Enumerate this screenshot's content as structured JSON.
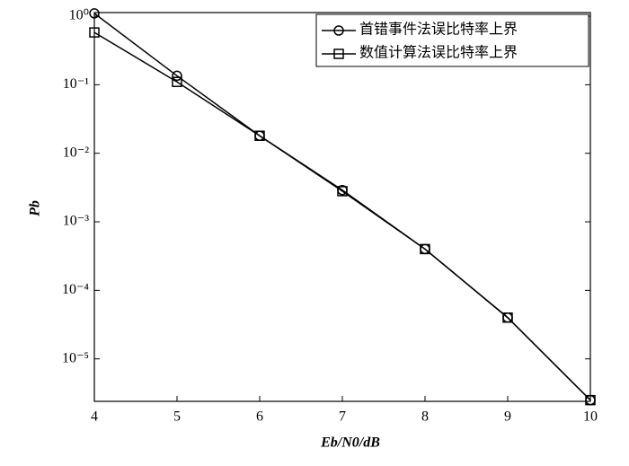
{
  "chart_data": {
    "type": "line",
    "x": [
      4,
      5,
      6,
      7,
      8,
      9,
      10
    ],
    "series": [
      {
        "name": "首错事件法误比特率上界",
        "color": "#000000",
        "marker": "circle",
        "values": [
          1.1,
          0.135,
          0.018,
          0.0029,
          0.0004,
          4e-05,
          2.5e-06
        ]
      },
      {
        "name": "数值计算法误比特率上界",
        "color": "#000000",
        "marker": "square",
        "values": [
          0.58,
          0.11,
          0.018,
          0.0028,
          0.0004,
          4e-05,
          2.5e-06
        ]
      }
    ],
    "x_label": "Eb/N0/dB",
    "y_label": "Pb",
    "xlim": [
      4,
      10
    ],
    "xticks": [
      4,
      5,
      6,
      7,
      8,
      9,
      10
    ],
    "ylim": [
      2.4e-06,
      1.13
    ],
    "log_y": true,
    "yticks": [
      {
        "value": 1,
        "label": "10⁰"
      },
      {
        "value": 0.1,
        "label": "10⁻¹"
      },
      {
        "value": 0.01,
        "label": "10⁻²"
      },
      {
        "value": 0.001,
        "label": "10⁻³"
      },
      {
        "value": 0.0001,
        "label": "10⁻⁴"
      },
      {
        "value": 1e-05,
        "label": "10⁻⁵"
      }
    ],
    "legend": "upper right"
  }
}
